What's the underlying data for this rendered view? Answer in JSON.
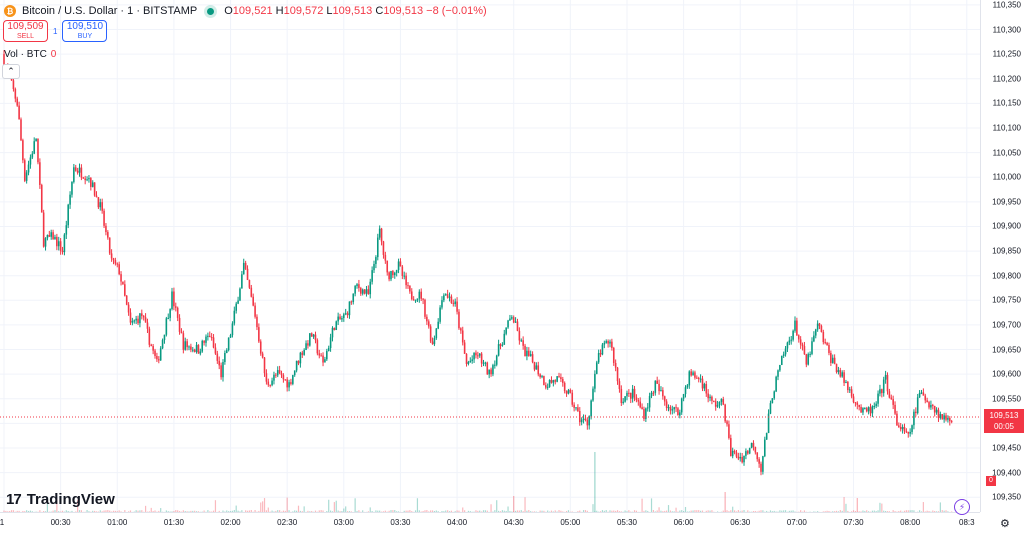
{
  "header": {
    "symbol_title": "Bitcoin / U.S. Dollar · 1 · BITSTAMP",
    "ohlc": {
      "o_label": "O",
      "o": "109,521",
      "h_label": "H",
      "h": "109,572",
      "l_label": "L",
      "l": "109,513",
      "c_label": "C",
      "c": "109,513",
      "change": "−8 (−0.01%)"
    }
  },
  "trade": {
    "sell_price": "109,509",
    "sell_label": "SELL",
    "spread": "1",
    "buy_price": "109,510",
    "buy_label": "BUY"
  },
  "volume_legend": {
    "label": "Vol · BTC",
    "value": "0"
  },
  "collapse_icon": "chevron-up-icon",
  "branding": {
    "name": "TradingView",
    "mark": "17"
  },
  "price_label": {
    "price": "109,513",
    "countdown": "00:05"
  },
  "volume_axis_label": "0",
  "colors": {
    "up": "#089981",
    "down": "#f23645",
    "grid": "#f0f3fa",
    "accent": "#2962ff"
  },
  "chart_data": {
    "type": "candlestick",
    "y_axis": {
      "ticks": [
        110350,
        110300,
        110250,
        110200,
        110150,
        110100,
        110050,
        110000,
        109950,
        109900,
        109850,
        109800,
        109750,
        109700,
        109650,
        109600,
        109550,
        109500,
        109450,
        109400,
        109350
      ],
      "tick_labels": [
        "110,350",
        "110,300",
        "110,250",
        "110,200",
        "110,150",
        "110,100",
        "110,050",
        "110,000",
        "109,950",
        "109,900",
        "109,850",
        "109,800",
        "109,750",
        "109,700",
        "109,650",
        "109,600",
        "109,550",
        "109,500",
        "109,450",
        "109,400",
        "109,350"
      ],
      "range": [
        109320,
        110360
      ]
    },
    "x_axis": {
      "tick_labels": [
        "1",
        "00:30",
        "01:00",
        "01:30",
        "02:00",
        "02:30",
        "03:00",
        "03:30",
        "04:00",
        "04:30",
        "05:00",
        "05:30",
        "06:00",
        "06:30",
        "07:00",
        "07:30",
        "08:00",
        "08:3"
      ],
      "tick_minutes": [
        0,
        30,
        60,
        90,
        120,
        150,
        180,
        210,
        240,
        270,
        300,
        330,
        360,
        390,
        420,
        450,
        480,
        510
      ],
      "range_minutes": [
        0,
        517
      ]
    },
    "last_price": 109513,
    "anchors": [
      {
        "t": 0,
        "p": 110250
      },
      {
        "t": 4,
        "p": 110200
      },
      {
        "t": 8,
        "p": 110150
      },
      {
        "t": 12,
        "p": 110000
      },
      {
        "t": 18,
        "p": 110080
      },
      {
        "t": 22,
        "p": 109870
      },
      {
        "t": 27,
        "p": 109880
      },
      {
        "t": 32,
        "p": 109850
      },
      {
        "t": 38,
        "p": 110020
      },
      {
        "t": 46,
        "p": 110000
      },
      {
        "t": 52,
        "p": 109940
      },
      {
        "t": 58,
        "p": 109830
      },
      {
        "t": 62,
        "p": 109810
      },
      {
        "t": 68,
        "p": 109700
      },
      {
        "t": 74,
        "p": 109720
      },
      {
        "t": 82,
        "p": 109620
      },
      {
        "t": 90,
        "p": 109760
      },
      {
        "t": 96,
        "p": 109660
      },
      {
        "t": 104,
        "p": 109650
      },
      {
        "t": 110,
        "p": 109680
      },
      {
        "t": 116,
        "p": 109600
      },
      {
        "t": 122,
        "p": 109700
      },
      {
        "t": 128,
        "p": 109820
      },
      {
        "t": 134,
        "p": 109720
      },
      {
        "t": 140,
        "p": 109580
      },
      {
        "t": 146,
        "p": 109600
      },
      {
        "t": 152,
        "p": 109580
      },
      {
        "t": 158,
        "p": 109640
      },
      {
        "t": 164,
        "p": 109680
      },
      {
        "t": 170,
        "p": 109620
      },
      {
        "t": 176,
        "p": 109700
      },
      {
        "t": 182,
        "p": 109720
      },
      {
        "t": 188,
        "p": 109780
      },
      {
        "t": 194,
        "p": 109760
      },
      {
        "t": 200,
        "p": 109890
      },
      {
        "t": 204,
        "p": 109800
      },
      {
        "t": 210,
        "p": 109820
      },
      {
        "t": 216,
        "p": 109760
      },
      {
        "t": 222,
        "p": 109760
      },
      {
        "t": 228,
        "p": 109660
      },
      {
        "t": 234,
        "p": 109770
      },
      {
        "t": 240,
        "p": 109740
      },
      {
        "t": 246,
        "p": 109620
      },
      {
        "t": 252,
        "p": 109640
      },
      {
        "t": 258,
        "p": 109600
      },
      {
        "t": 264,
        "p": 109660
      },
      {
        "t": 270,
        "p": 109720
      },
      {
        "t": 276,
        "p": 109650
      },
      {
        "t": 282,
        "p": 109620
      },
      {
        "t": 288,
        "p": 109580
      },
      {
        "t": 294,
        "p": 109590
      },
      {
        "t": 300,
        "p": 109560
      },
      {
        "t": 306,
        "p": 109510
      },
      {
        "t": 310,
        "p": 109500
      },
      {
        "t": 316,
        "p": 109640
      },
      {
        "t": 322,
        "p": 109670
      },
      {
        "t": 328,
        "p": 109550
      },
      {
        "t": 334,
        "p": 109560
      },
      {
        "t": 340,
        "p": 109520
      },
      {
        "t": 346,
        "p": 109580
      },
      {
        "t": 352,
        "p": 109540
      },
      {
        "t": 358,
        "p": 109520
      },
      {
        "t": 364,
        "p": 109600
      },
      {
        "t": 370,
        "p": 109590
      },
      {
        "t": 376,
        "p": 109540
      },
      {
        "t": 382,
        "p": 109540
      },
      {
        "t": 386,
        "p": 109440
      },
      {
        "t": 392,
        "p": 109430
      },
      {
        "t": 398,
        "p": 109460
      },
      {
        "t": 402,
        "p": 109410
      },
      {
        "t": 408,
        "p": 109560
      },
      {
        "t": 414,
        "p": 109640
      },
      {
        "t": 420,
        "p": 109700
      },
      {
        "t": 426,
        "p": 109620
      },
      {
        "t": 432,
        "p": 109700
      },
      {
        "t": 438,
        "p": 109640
      },
      {
        "t": 444,
        "p": 109600
      },
      {
        "t": 450,
        "p": 109560
      },
      {
        "t": 456,
        "p": 109520
      },
      {
        "t": 462,
        "p": 109530
      },
      {
        "t": 468,
        "p": 109590
      },
      {
        "t": 474,
        "p": 109500
      },
      {
        "t": 480,
        "p": 109470
      },
      {
        "t": 486,
        "p": 109560
      },
      {
        "t": 492,
        "p": 109540
      },
      {
        "t": 498,
        "p": 109510
      },
      {
        "t": 502,
        "p": 109513
      }
    ]
  }
}
